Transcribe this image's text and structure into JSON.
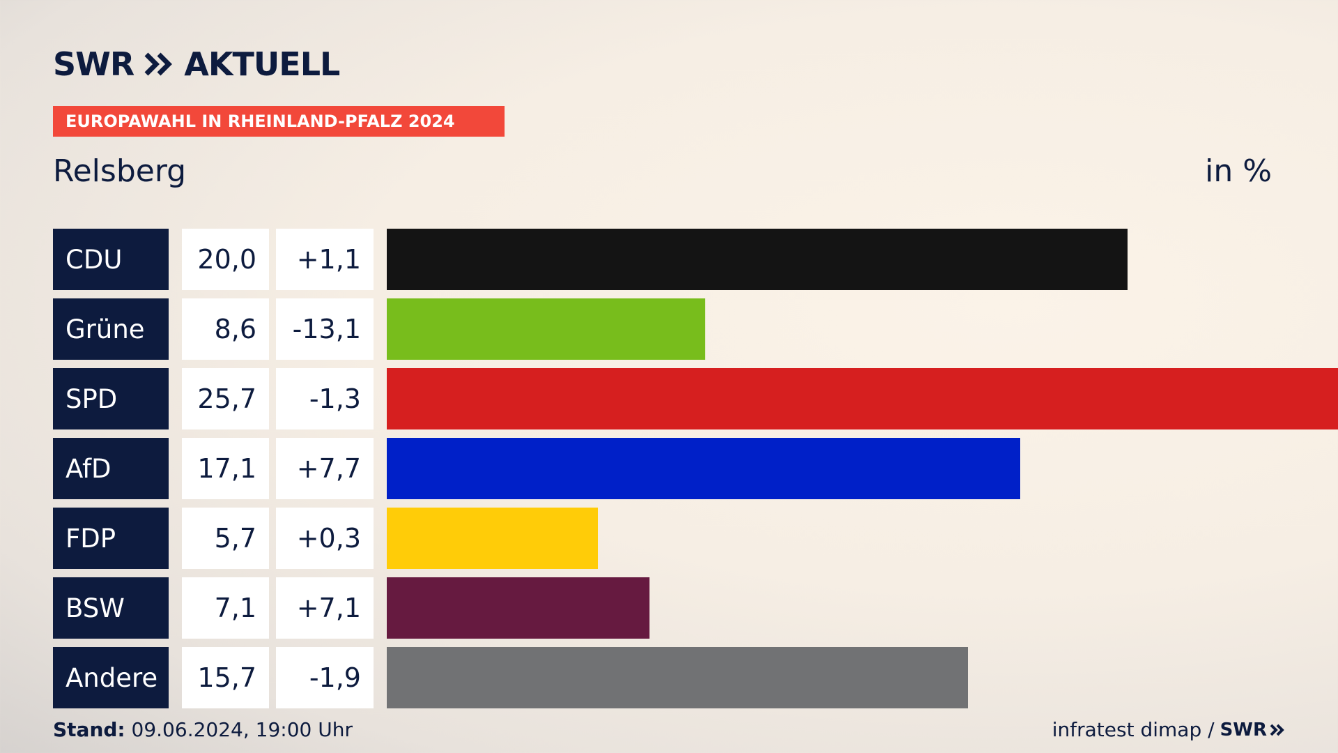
{
  "brand": {
    "logo_text": "SWR",
    "logo_suffix": "AKTUELL"
  },
  "banner": "EUROPAWAHL IN RHEINLAND-PFALZ 2024",
  "place": "Relsberg",
  "unit": "in %",
  "footer": {
    "stand_label": "Stand:",
    "stand_value": "09.06.2024, 19:00 Uhr",
    "source": "infratest dimap /",
    "source_logo": "SWR"
  },
  "chart_data": {
    "type": "bar",
    "orientation": "horizontal",
    "unit": "%",
    "categories": [
      "CDU",
      "Grüne",
      "SPD",
      "AfD",
      "FDP",
      "BSW",
      "Andere"
    ],
    "values": [
      20.0,
      8.6,
      25.7,
      17.1,
      5.7,
      7.1,
      15.7
    ],
    "value_labels": [
      "20,0",
      "8,6",
      "25,7",
      "17,1",
      "5,7",
      "7,1",
      "15,7"
    ],
    "diff_labels": [
      "+1,1",
      "-13,1",
      "-1,3",
      "+7,7",
      "+0,3",
      "+7,1",
      "-1,9"
    ],
    "diffs": [
      1.1,
      -13.1,
      -1.3,
      7.7,
      0.3,
      7.1,
      -1.9
    ],
    "colors": [
      "#141414",
      "#78bd1c",
      "#d61f1f",
      "#0020c8",
      "#ffcc08",
      "#661a40",
      "#717274"
    ],
    "xlim": [
      0,
      25.7
    ],
    "grid": false,
    "legend": "none"
  }
}
